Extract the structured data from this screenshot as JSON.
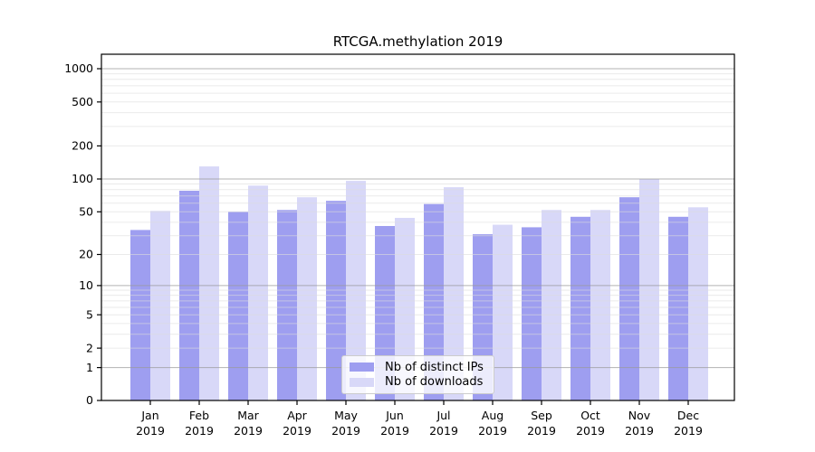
{
  "title": "RTCGA.methylation 2019",
  "chart_data": {
    "type": "bar",
    "title": "RTCGA.methylation 2019",
    "yscale": "log1p",
    "ylim": [
      0,
      1350
    ],
    "grid": true,
    "legend_position": "lower-center",
    "categories": [
      "Jan",
      "Feb",
      "Mar",
      "Apr",
      "May",
      "Jun",
      "Jul",
      "Aug",
      "Sep",
      "Oct",
      "Nov",
      "Dec"
    ],
    "category_sublabel": "2019",
    "y_tick_labels": [
      0,
      1,
      2,
      5,
      10,
      20,
      50,
      100,
      200,
      500,
      1000
    ],
    "major_gridlines": [
      1,
      10,
      100,
      1000
    ],
    "minor_gridlines": [
      2,
      3,
      4,
      5,
      6,
      7,
      8,
      9,
      20,
      30,
      40,
      50,
      60,
      70,
      80,
      90,
      200,
      300,
      400,
      500,
      600,
      700,
      800,
      900
    ],
    "series": [
      {
        "name": "Nb of distinct IPs",
        "color": "#9e9ef0",
        "values": [
          34,
          78,
          50,
          52,
          63,
          37,
          59,
          31,
          36,
          45,
          68,
          45
        ]
      },
      {
        "name": "Nb of downloads",
        "color": "#d8d8f8",
        "values": [
          51,
          130,
          87,
          68,
          96,
          44,
          84,
          38,
          52,
          52,
          100,
          55
        ]
      }
    ]
  },
  "colors": {
    "background": "#ffffff",
    "axis": "#000000",
    "major_grid": "#9a9a9a",
    "minor_grid": "#dcdcdc",
    "text": "#000000"
  }
}
